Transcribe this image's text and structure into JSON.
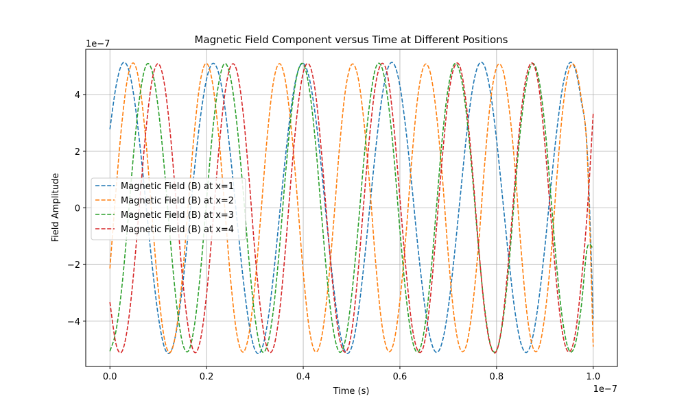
{
  "chart_data": {
    "type": "line",
    "title": "Magnetic Field Component versus Time at Different Positions",
    "xlabel": "Time (s)",
    "ylabel": "Field Amplitude",
    "x_offset_text": "1e−7",
    "y_offset_text": "1e−7",
    "xlim": [
      -0.05,
      1.05
    ],
    "ylim": [
      -5.6,
      5.6
    ],
    "x_ticks": [
      0.0,
      0.2,
      0.4,
      0.6,
      0.8,
      1.0
    ],
    "x_tick_labels": [
      "0.0",
      "0.2",
      "0.4",
      "0.6",
      "0.8",
      "1.0"
    ],
    "y_ticks": [
      -4,
      -2,
      0,
      2,
      4
    ],
    "y_tick_labels": [
      "−4",
      "−2",
      "0",
      "2",
      "4"
    ],
    "grid": true,
    "legend_position": "center-left",
    "line_style": "dashed",
    "x": [
      0,
      0.0125,
      0.025,
      0.0375,
      0.05,
      0.0625,
      0.075,
      0.0875,
      0.1,
      0.1125,
      0.125,
      0.1375,
      0.15,
      0.1625,
      0.175,
      0.1875,
      0.2,
      0.2125,
      0.225,
      0.2375,
      0.25,
      0.2625,
      0.275,
      0.2875,
      0.3,
      0.3125,
      0.325,
      0.3375,
      0.35,
      0.3625,
      0.375,
      0.3875,
      0.4,
      0.4125,
      0.425,
      0.4375,
      0.45,
      0.4625,
      0.475,
      0.4875,
      0.5,
      0.5125,
      0.525,
      0.5375,
      0.55,
      0.5625,
      0.575,
      0.5875,
      0.6,
      0.6125,
      0.625,
      0.6375,
      0.65,
      0.6625,
      0.675,
      0.6875,
      0.7,
      0.7125,
      0.725,
      0.7375,
      0.75,
      0.7625,
      0.775,
      0.7875,
      0.8,
      0.8125,
      0.825,
      0.8375,
      0.85,
      0.8625,
      0.875,
      0.8875,
      0.9,
      0.9125,
      0.925,
      0.9375,
      0.95,
      0.9625,
      0.975,
      0.9875,
      1.0
    ],
    "series": [
      {
        "name": "Magnetic Field (B) at x=1",
        "color": "#1f77b4",
        "values": [
          2.78,
          4.28,
          5.08,
          4.95,
          3.9,
          2.15,
          0.06,
          -2.04,
          -3.81,
          -4.91,
          -5.1,
          -4.35,
          -2.79,
          -0.79,
          1.37,
          3.23,
          4.55,
          5.1,
          4.76,
          3.59,
          1.76,
          -0.34,
          -2.4,
          -4.06,
          -5.01,
          -5.05,
          -4.18,
          -2.52,
          -0.42,
          1.7,
          3.54,
          4.74,
          5.1,
          4.58,
          3.27,
          1.42,
          -0.74,
          -2.75,
          -4.31,
          -5.09,
          -4.93,
          -3.86,
          -2.09,
          0.0,
          2.09,
          3.86,
          4.93,
          5.09,
          4.31,
          2.75,
          0.74,
          -1.42,
          -3.27,
          -4.58,
          -5.1,
          -4.74,
          -3.54,
          -1.7,
          0.42,
          2.52,
          4.18,
          5.05,
          5.01,
          4.06,
          2.4,
          0.34,
          -1.76,
          -3.59,
          -4.76,
          -5.1,
          -4.55,
          -3.23,
          -1.37,
          0.79,
          2.79,
          4.35,
          5.1,
          4.91,
          3.81,
          2.04,
          -3.9
        ]
      },
      {
        "name": "Magnetic Field (B) at x=2",
        "color": "#ff7f0e",
        "values": [
          -2.14,
          0.6,
          3.03,
          4.67,
          5.1,
          4.23,
          2.27,
          -0.4,
          -2.88,
          -4.6,
          -5.1,
          -4.3,
          -2.42,
          0.2,
          2.73,
          4.52,
          5.1,
          4.39,
          2.56,
          0.01,
          -2.58,
          -4.44,
          -5.09,
          -4.47,
          -2.71,
          -0.19,
          2.43,
          4.36,
          5.09,
          4.54,
          2.85,
          0.39,
          -2.28,
          -4.27,
          -5.08,
          -4.61,
          -3.0,
          -0.58,
          2.13,
          4.18,
          5.06,
          4.68,
          3.14,
          0.78,
          -1.97,
          -4.09,
          -5.04,
          -4.74,
          -3.27,
          -0.97,
          1.81,
          3.99,
          5.02,
          4.8,
          3.41,
          1.16,
          -1.64,
          -3.89,
          -4.99,
          -4.85,
          -3.53,
          -1.35,
          1.48,
          3.78,
          4.96,
          4.9,
          3.66,
          1.54,
          -1.31,
          -3.67,
          -4.92,
          -4.94,
          -3.78,
          -1.72,
          1.14,
          3.56,
          4.88,
          4.98,
          3.9,
          1.9,
          -4.9
        ]
      },
      {
        "name": "Magnetic Field (B) at x=3",
        "color": "#2ca02c",
        "values": [
          -5.06,
          -4.35,
          -2.75,
          -0.4,
          2.1,
          4.03,
          5.04,
          4.82,
          3.52,
          1.42,
          -1.13,
          -3.34,
          -4.75,
          -5.05,
          -4.14,
          -2.24,
          0.28,
          2.7,
          4.39,
          5.1,
          4.56,
          3.0,
          0.72,
          -1.8,
          -3.85,
          -5.0,
          -4.89,
          -3.7,
          -1.58,
          1.03,
          3.27,
          4.72,
          5.08,
          4.21,
          2.36,
          -0.17,
          -2.6,
          -4.34,
          -5.09,
          -4.64,
          -3.12,
          -0.9,
          1.61,
          3.7,
          4.95,
          4.97,
          3.84,
          1.84,
          -0.79,
          -3.08,
          -4.62,
          -5.09,
          -4.36,
          -2.6,
          -0.11,
          2.43,
          4.24,
          5.08,
          4.73,
          3.33,
          1.13,
          -1.37,
          -3.5,
          -4.84,
          -5.03,
          -4.06,
          -2.13,
          0.49,
          2.86,
          4.48,
          5.1,
          4.54,
          2.88,
          0.38,
          -2.18,
          -4.07,
          -5.03,
          -4.83,
          -3.52,
          -1.42,
          -1.45
        ]
      },
      {
        "name": "Magnetic Field (B) at x=4",
        "color": "#d62728",
        "values": [
          -3.33,
          -4.8,
          -5.07,
          -4.1,
          -2.14,
          0.4,
          2.82,
          4.53,
          5.09,
          4.4,
          2.61,
          0.11,
          -2.43,
          -4.27,
          -5.1,
          -4.64,
          -3.05,
          -0.64,
          1.98,
          3.99,
          5.01,
          4.85,
          3.45,
          1.12,
          -1.55,
          -3.7,
          -4.93,
          -4.98,
          -3.81,
          -1.58,
          1.08,
          3.35,
          4.78,
          5.06,
          4.11,
          2.01,
          -0.61,
          -2.96,
          -4.6,
          -5.09,
          -4.39,
          -2.45,
          0.14,
          2.57,
          4.39,
          5.1,
          4.63,
          2.87,
          0.34,
          -2.16,
          -4.16,
          -5.05,
          -4.82,
          -3.27,
          -0.84,
          1.73,
          3.88,
          4.98,
          4.95,
          3.63,
          1.34,
          -1.29,
          -3.58,
          -4.87,
          -5.05,
          -3.97,
          -1.8,
          0.83,
          3.23,
          4.72,
          5.1,
          4.27,
          2.24,
          -0.35,
          -2.82,
          -4.52,
          -5.09,
          -4.48,
          -2.68,
          -0.17,
          3.35
        ]
      }
    ]
  }
}
